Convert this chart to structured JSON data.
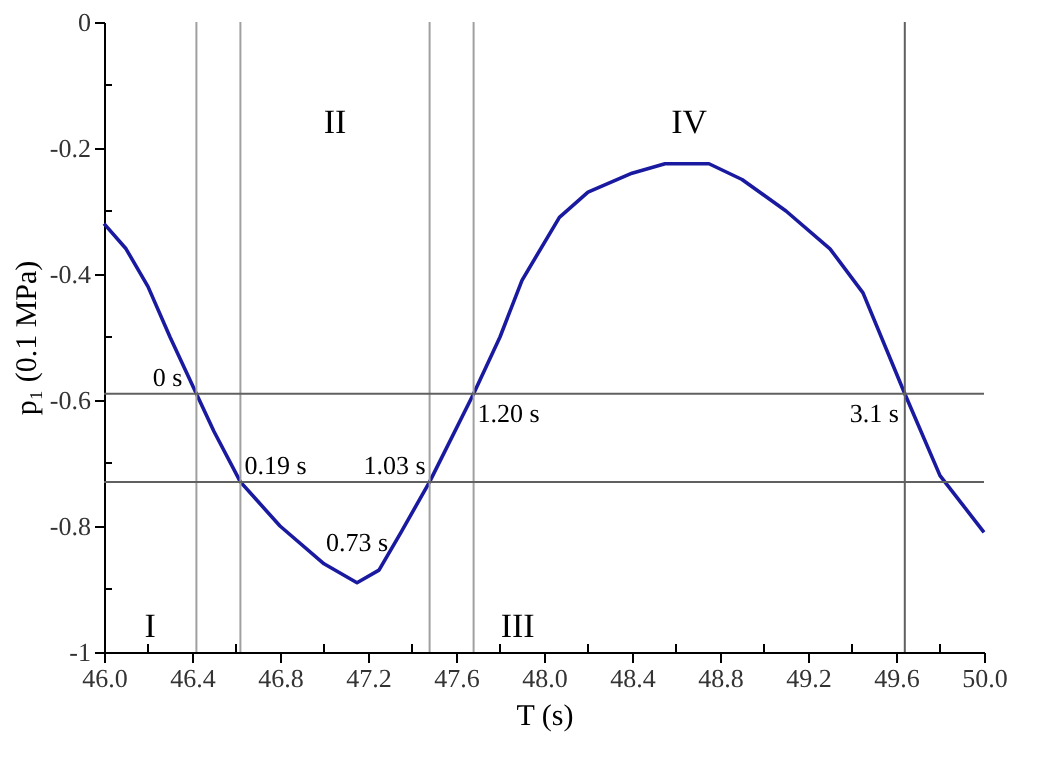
{
  "chart_data": {
    "type": "line",
    "xlabel": "T (s)",
    "ylabel": "p₁ (0.1 MPa)",
    "x": [
      46.0,
      46.1,
      46.2,
      46.3,
      46.42,
      46.5,
      46.62,
      46.8,
      47.0,
      47.15,
      47.25,
      47.35,
      47.48,
      47.68,
      47.8,
      47.9,
      48.07,
      48.2,
      48.4,
      48.55,
      48.75,
      48.9,
      49.1,
      49.3,
      49.45,
      49.64,
      49.8,
      50.0
    ],
    "series": [
      {
        "color": "#1a1aa0",
        "values": [
          -0.32,
          -0.36,
          -0.42,
          -0.5,
          -0.59,
          -0.65,
          -0.73,
          -0.8,
          -0.86,
          -0.89,
          -0.87,
          -0.81,
          -0.73,
          -0.59,
          -0.5,
          -0.41,
          -0.31,
          -0.27,
          -0.24,
          -0.225,
          -0.225,
          -0.25,
          -0.3,
          -0.36,
          -0.43,
          -0.59,
          -0.72,
          -0.81
        ]
      }
    ],
    "xlim": [
      46.0,
      50.0
    ],
    "ylim": [
      -1,
      0
    ],
    "xticks": [
      {
        "value": 46.0,
        "label": "46.0"
      },
      {
        "value": 46.2,
        "label": null
      },
      {
        "value": 46.4,
        "label": "46.4"
      },
      {
        "value": 46.6,
        "label": null
      },
      {
        "value": 46.8,
        "label": "46.8"
      },
      {
        "value": 47.0,
        "label": null
      },
      {
        "value": 47.2,
        "label": "47.2"
      },
      {
        "value": 47.4,
        "label": null
      },
      {
        "value": 47.6,
        "label": "47.6"
      },
      {
        "value": 47.8,
        "label": null
      },
      {
        "value": 48.0,
        "label": "48.0"
      },
      {
        "value": 48.2,
        "label": null
      },
      {
        "value": 48.4,
        "label": "48.4"
      },
      {
        "value": 48.6,
        "label": null
      },
      {
        "value": 48.8,
        "label": "48.8"
      },
      {
        "value": 49.0,
        "label": null
      },
      {
        "value": 49.2,
        "label": "49.2"
      },
      {
        "value": 49.4,
        "label": null
      },
      {
        "value": 49.6,
        "label": "49.6"
      },
      {
        "value": 49.8,
        "label": null
      },
      {
        "value": 50.0,
        "label": "50.0"
      }
    ],
    "yticks": [
      -1,
      {
        "value": -0.9,
        "label": null
      },
      -0.8,
      {
        "value": -0.7,
        "label": null
      },
      -0.6,
      {
        "value": -0.5,
        "label": null
      },
      -0.4,
      {
        "value": -0.3,
        "label": null
      },
      -0.2,
      {
        "value": -0.1,
        "label": null
      },
      0
    ],
    "ref_lines": [
      {
        "axis": "x",
        "value": 46.42,
        "color": "#a0a0a0"
      },
      {
        "axis": "x",
        "value": 46.62,
        "color": "#a0a0a0"
      },
      {
        "axis": "x",
        "value": 47.48,
        "color": "#a0a0a0"
      },
      {
        "axis": "x",
        "value": 47.68,
        "color": "#a0a0a0"
      },
      {
        "axis": "x",
        "value": 49.64,
        "color": "#606060"
      },
      {
        "axis": "y",
        "value": -0.59,
        "color": "#606060"
      },
      {
        "axis": "y",
        "value": -0.73,
        "color": "#606060"
      }
    ],
    "annotations": [
      "I",
      "II",
      "III",
      "IV",
      {
        "text": "0 s",
        "x": 46.42,
        "y": -0.59
      },
      {
        "text": "0.19 s",
        "x": 46.62,
        "y": -0.73
      },
      {
        "text": "1.03 s",
        "x": 47.48,
        "y": -0.73
      },
      {
        "text": "0.73 s",
        "x": 47.15,
        "y": -0.89
      },
      {
        "text": "1.20 s",
        "x": 47.68,
        "y": -0.59
      },
      {
        "text": "3.1 s",
        "x": 49.64,
        "y": -0.59
      }
    ],
    "marker": "none",
    "line_style": "solid"
  }
}
